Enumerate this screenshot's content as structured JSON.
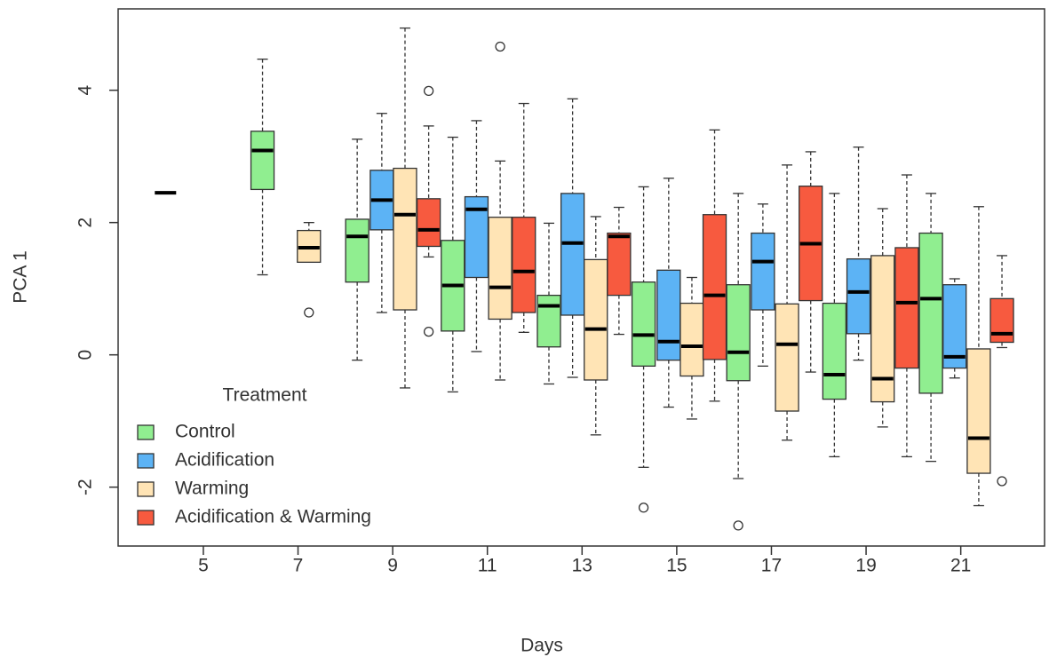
{
  "chart_data": {
    "type": "box",
    "xlabel": "Days",
    "ylabel": "PCA 1",
    "xlim": [
      3.2,
      22.77
    ],
    "ylim": [
      -2.89,
      5.23
    ],
    "xticks": [
      5,
      7,
      9,
      11,
      13,
      15,
      17,
      19,
      21
    ],
    "yticks": [
      -2,
      0,
      2,
      4
    ],
    "legend_title": "Treatment",
    "legend": "bottom-left",
    "series": [
      {
        "name": "Control",
        "color": "#90ee90",
        "x": [
          4.2,
          6.25,
          8.25,
          10.27,
          12.3,
          14.3,
          16.3,
          18.33,
          20.37
        ],
        "low": [
          2.45,
          1.21,
          -0.08,
          -0.56,
          -0.44,
          -1.7,
          -1.87,
          -1.54,
          -1.61
        ],
        "q1": [
          2.45,
          2.5,
          1.1,
          0.36,
          0.12,
          -0.17,
          -0.39,
          -0.67,
          -0.58
        ],
        "median": [
          2.45,
          3.09,
          1.79,
          1.05,
          0.74,
          0.3,
          0.04,
          -0.3,
          0.85
        ],
        "q3": [
          2.45,
          3.38,
          2.05,
          1.73,
          0.9,
          1.1,
          1.06,
          0.78,
          1.84
        ],
        "high": [
          2.45,
          4.47,
          3.26,
          3.29,
          1.99,
          2.54,
          2.44,
          2.44,
          2.44
        ],
        "outliers": {
          "x": [
            14.3,
            16.3
          ],
          "y": [
            -2.31,
            -2.58
          ]
        }
      },
      {
        "name": "Acidification",
        "color": "#5cb3f5",
        "x": [
          8.77,
          10.77,
          12.8,
          14.83,
          16.82,
          18.84,
          20.87
        ],
        "low": [
          0.64,
          0.05,
          -0.34,
          -0.79,
          -0.17,
          -0.08,
          -0.35
        ],
        "q1": [
          1.89,
          1.17,
          0.6,
          -0.08,
          0.68,
          0.32,
          -0.2
        ],
        "median": [
          2.34,
          2.2,
          1.69,
          0.2,
          1.41,
          0.95,
          -0.03
        ],
        "q3": [
          2.79,
          2.39,
          2.44,
          1.28,
          1.84,
          1.45,
          1.06
        ],
        "high": [
          3.65,
          3.54,
          3.87,
          2.67,
          2.28,
          3.14,
          1.15
        ],
        "outliers": {
          "x": [],
          "y": []
        }
      },
      {
        "name": "Warming",
        "color": "#ffe4b5",
        "x": [
          7.23,
          9.26,
          11.27,
          13.29,
          15.32,
          17.33,
          19.35,
          21.38
        ],
        "low": [
          1.4,
          -0.5,
          -0.38,
          -1.21,
          -0.97,
          -1.29,
          -1.09,
          -2.28
        ],
        "q1": [
          1.4,
          0.68,
          0.54,
          -0.38,
          -0.32,
          -0.85,
          -0.71,
          -1.79
        ],
        "median": [
          1.62,
          2.12,
          1.02,
          0.39,
          0.13,
          0.16,
          -0.36,
          -1.26
        ],
        "q3": [
          1.88,
          2.82,
          2.08,
          1.44,
          0.78,
          0.77,
          1.5,
          0.09
        ],
        "high": [
          2.0,
          4.94,
          2.93,
          2.09,
          1.17,
          2.87,
          2.21,
          2.24
        ],
        "outliers": {
          "x": [
            7.23,
            11.27
          ],
          "y": [
            0.64,
            4.66
          ]
        }
      },
      {
        "name": "Acidification & Warming",
        "color": "#f75a3f",
        "x": [
          9.76,
          11.77,
          13.78,
          15.8,
          17.83,
          19.86,
          21.87
        ],
        "low": [
          1.48,
          0.34,
          0.31,
          -0.7,
          -0.26,
          -1.54,
          0.11
        ],
        "q1": [
          1.64,
          0.64,
          0.9,
          -0.07,
          0.82,
          -0.2,
          0.19
        ],
        "median": [
          1.89,
          1.26,
          1.79,
          0.9,
          1.68,
          0.79,
          0.32
        ],
        "q3": [
          2.36,
          2.08,
          1.84,
          2.12,
          2.55,
          1.62,
          0.85
        ],
        "high": [
          3.46,
          3.8,
          2.23,
          3.4,
          3.07,
          2.72,
          1.5
        ],
        "outliers": {
          "x": [
            9.76,
            9.76,
            21.87
          ],
          "y": [
            3.99,
            0.35,
            -1.91
          ]
        }
      }
    ]
  }
}
